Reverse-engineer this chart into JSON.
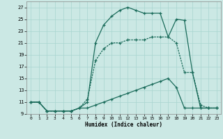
{
  "xlabel": "Humidex (Indice chaleur)",
  "background_color": "#cbe8e4",
  "grid_color": "#a8d5cf",
  "line_color": "#1a6b5a",
  "xlim": [
    -0.5,
    23.5
  ],
  "ylim": [
    9,
    28
  ],
  "xticks": [
    0,
    1,
    2,
    3,
    4,
    5,
    6,
    7,
    8,
    9,
    10,
    11,
    12,
    13,
    14,
    15,
    16,
    17,
    18,
    19,
    20,
    21,
    22,
    23
  ],
  "yticks": [
    9,
    11,
    13,
    15,
    17,
    19,
    21,
    23,
    25,
    27
  ],
  "s1_x": [
    0,
    1,
    2,
    3,
    4,
    5,
    6,
    7,
    8,
    9,
    10,
    11,
    12,
    13,
    14,
    15,
    16,
    17,
    18,
    19,
    20,
    21,
    22,
    23
  ],
  "s1_y": [
    11,
    11,
    9.5,
    9.5,
    9.5,
    9.5,
    10,
    10,
    10.5,
    11,
    11.5,
    12,
    12.5,
    13,
    13.5,
    14,
    14.5,
    15,
    13.5,
    10,
    10,
    10,
    10,
    10
  ],
  "s2_x": [
    0,
    1,
    2,
    3,
    4,
    5,
    6,
    7,
    8,
    9,
    10,
    11,
    12,
    13,
    14,
    15,
    16,
    17,
    18,
    19,
    20,
    21,
    22,
    23
  ],
  "s2_y": [
    11,
    11,
    9.5,
    9.5,
    9.5,
    9.5,
    10,
    11.5,
    18,
    20,
    21,
    21,
    21.5,
    21.5,
    21.5,
    22,
    22,
    22,
    21,
    16,
    16,
    10.5,
    10,
    10
  ],
  "s3_x": [
    0,
    1,
    2,
    3,
    4,
    5,
    6,
    7,
    8,
    9,
    10,
    11,
    12,
    13,
    14,
    15,
    16,
    17,
    18,
    19,
    20,
    21,
    22,
    23
  ],
  "s3_y": [
    11,
    11,
    9.5,
    9.5,
    9.5,
    9.5,
    10,
    11,
    21,
    24,
    25.5,
    26.5,
    27,
    26.5,
    26,
    26,
    26,
    22,
    25,
    24.8,
    16,
    10,
    10,
    10
  ]
}
